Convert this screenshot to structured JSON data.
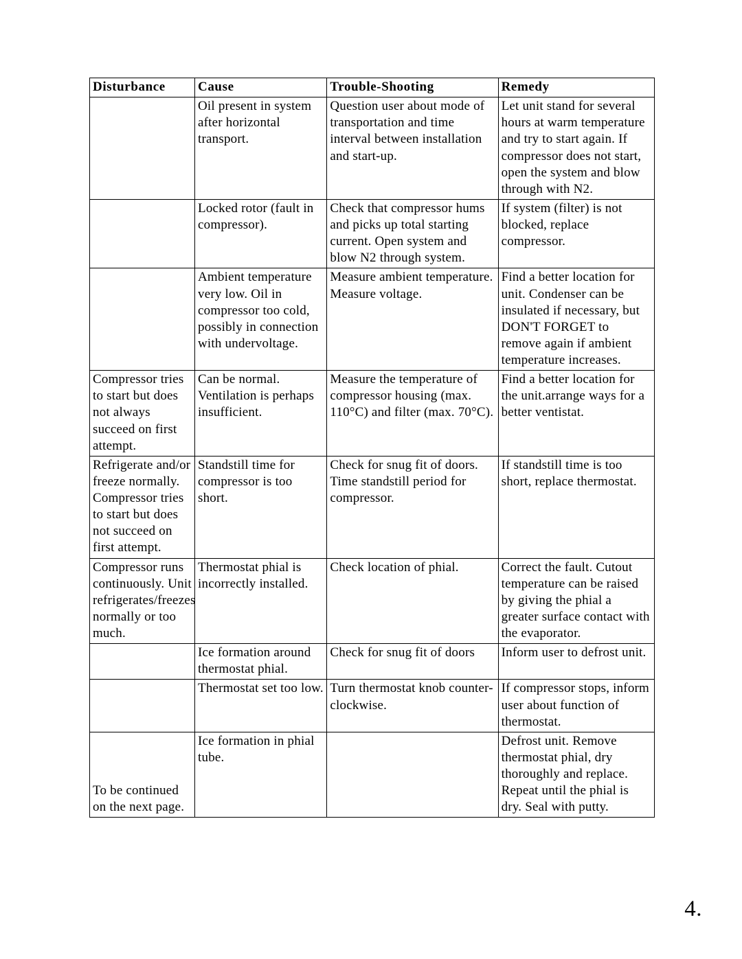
{
  "table": {
    "headers": {
      "disturbance": "Disturbance",
      "cause": "Cause",
      "trouble": "Trouble-Shooting",
      "remedy": "Remedy"
    },
    "rows": [
      {
        "disturbance": "",
        "cause": "Oil present in system after horizontal transport.",
        "trouble": "Question user about mode of transportation and time interval between installation and start-up.",
        "remedy": "Let unit stand for several hours at warm temperature and try to start again. If compressor does not start, open the system and blow through with N2."
      },
      {
        "disturbance": "",
        "cause": "Locked rotor (fault in compressor).",
        "trouble": "Check that compressor hums and picks up total starting current. Open system and blow N2 through system.",
        "remedy": "If system (filter) is not blocked, replace compressor."
      },
      {
        "disturbance": "",
        "cause": "Ambient temperature very low. Oil in compressor too cold, possibly in connection with undervoltage.",
        "trouble": "Measure ambient temperature. Measure voltage.",
        "remedy": "Find a better location for unit. Condenser can be insulated if necessary, but DON'T FORGET to remove again if ambient temperature increases."
      },
      {
        "disturbance": "Compressor tries to start but does not always succeed on first attempt.",
        "cause": "Can be normal. Ventilation is perhaps insufficient.",
        "trouble": "Measure the temperature of compressor housing (max. 110°C) and filter (max. 70°C).",
        "remedy": "Find a better location for the unit.arrange ways for a better ventistat."
      },
      {
        "disturbance": "Refrigerate and/or freeze normally. Compressor tries to start but does not succeed on first attempt.",
        "cause": "Standstill time for compressor is too short.",
        "trouble": "Check for snug fit of doors. Time standstill period for compressor.",
        "remedy": "If standstill time is too short, replace thermostat."
      },
      {
        "disturbance": "Compressor runs continuously. Unit refrigerates/freezes normally or too much.",
        "cause": "Thermostat phial is incorrectly installed.",
        "trouble": "Check location of phial.",
        "remedy": "Correct the fault. Cutout temperature can be raised by giving the phial a greater surface contact with the evaporator."
      },
      {
        "disturbance": "",
        "cause": "Ice formation around thermostat phial.",
        "trouble": "Check for snug fit of doors",
        "remedy": "Inform user to defrost unit."
      },
      {
        "disturbance": "",
        "cause": "Thermostat set too low.",
        "trouble": "Turn thermostat knob counter-clockwise.",
        "remedy": "If compressor stops, inform user about function of thermostat."
      },
      {
        "disturbance": "To be continued on the next page.",
        "cause": "Ice formation in phial tube.",
        "trouble": "",
        "remedy": "Defrost unit. Remove thermostat phial, dry thoroughly and replace. Repeat until the phial is dry. Seal with putty."
      }
    ],
    "column_widths_pct": [
      17.5,
      22,
      28.5,
      26
    ],
    "border_color": "#000000",
    "background_color": "#ffffff",
    "font_family": "Times New Roman",
    "font_size_pt": 14,
    "header_font_weight": "bold",
    "text_color": "#000000"
  },
  "page_number": "4.",
  "footnote_row_index": 8,
  "disturbance_vertical_align_bottom": true
}
